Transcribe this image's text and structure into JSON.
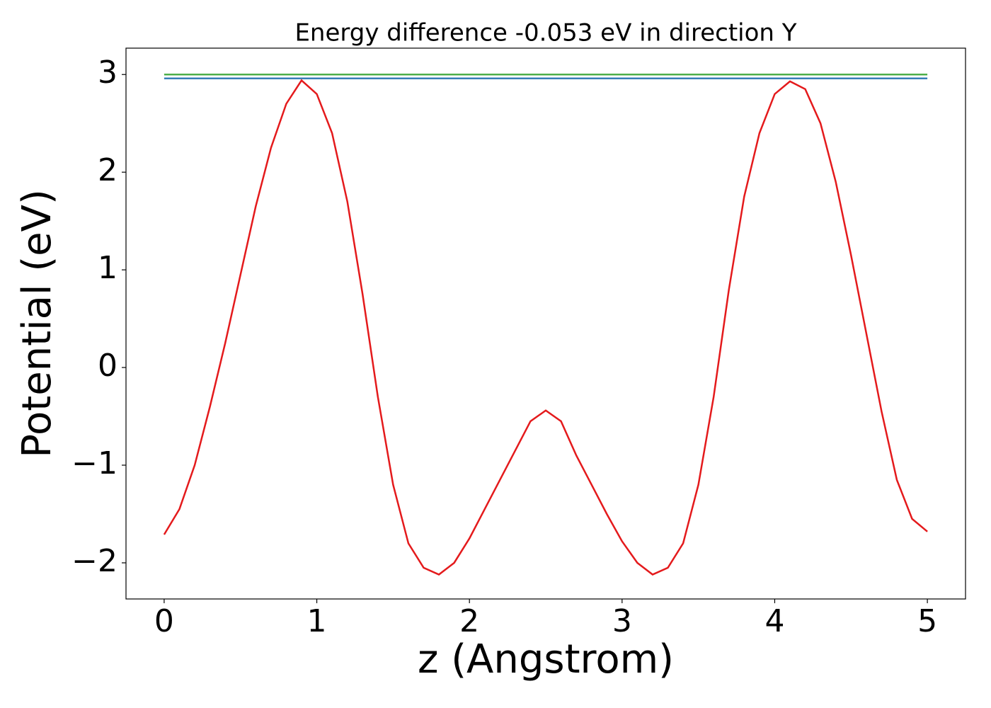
{
  "chart_data": {
    "type": "line",
    "title": "Energy difference -0.053 eV in direction Y",
    "xlabel": "z (Angstrom)",
    "ylabel": "Potential (eV)",
    "xlim": [
      -0.25,
      5.25
    ],
    "ylim": [
      -2.37,
      3.27
    ],
    "xticks": [
      0,
      1,
      2,
      3,
      4,
      5
    ],
    "yticks": [
      {
        "value": -2,
        "label": "−2"
      },
      {
        "value": -1,
        "label": "−1"
      },
      0,
      1,
      2,
      3
    ],
    "series": [
      {
        "color": "#4daf4a",
        "x": [
          0,
          5
        ],
        "values": [
          3.0,
          3.0
        ]
      },
      {
        "color": "#377eb8",
        "x": [
          0,
          5
        ],
        "values": [
          2.96,
          2.96
        ]
      },
      {
        "color": "#e41a1c",
        "x": [
          0,
          0.1,
          0.2,
          0.3,
          0.4,
          0.5,
          0.6,
          0.7,
          0.8,
          0.9,
          1.0,
          1.1,
          1.2,
          1.3,
          1.4,
          1.5,
          1.6,
          1.7,
          1.8,
          1.9,
          2.0,
          2.1,
          2.2,
          2.3,
          2.4,
          2.5,
          2.6,
          2.7,
          2.8,
          2.9,
          3.0,
          3.1,
          3.2,
          3.3,
          3.4,
          3.5,
          3.6,
          3.7,
          3.8,
          3.9,
          4.0,
          4.1,
          4.2,
          4.3,
          4.4,
          4.5,
          4.6,
          4.7,
          4.8,
          4.9,
          5.0
        ],
        "values": [
          -1.71,
          -1.45,
          -1.0,
          -0.4,
          0.25,
          0.95,
          1.65,
          2.25,
          2.7,
          2.94,
          2.8,
          2.4,
          1.7,
          0.75,
          -0.3,
          -1.2,
          -1.8,
          -2.05,
          -2.12,
          -2.0,
          -1.75,
          -1.45,
          -1.15,
          -0.85,
          -0.55,
          -0.44,
          -0.55,
          -0.9,
          -1.2,
          -1.5,
          -1.78,
          -2.0,
          -2.12,
          -2.05,
          -1.8,
          -1.2,
          -0.3,
          0.8,
          1.75,
          2.4,
          2.8,
          2.93,
          2.85,
          2.5,
          1.9,
          1.15,
          0.35,
          -0.45,
          -1.15,
          -1.55,
          -1.68
        ]
      }
    ]
  }
}
